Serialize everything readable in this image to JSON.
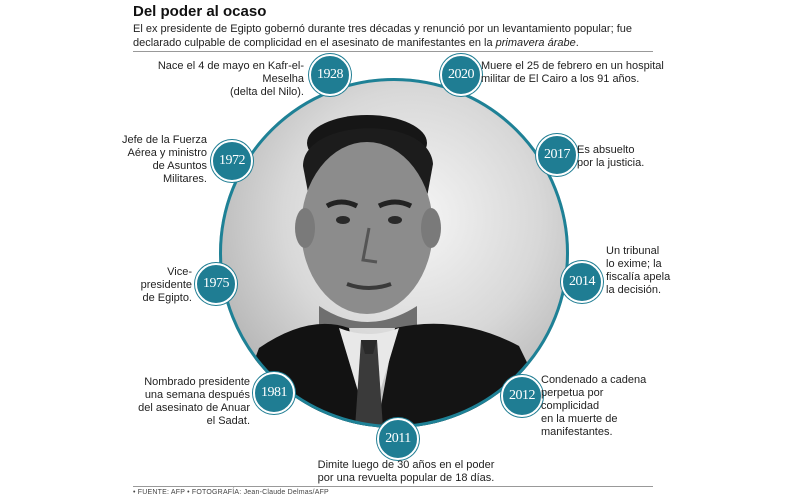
{
  "title": "Del poder al ocaso",
  "intro": {
    "line1": "El ex presidente de Egipto gobernó durante tres décadas y renunció por un levantamiento popular; fue",
    "line2_prefix": "declarado culpable de complicidad en el asesinato de manifestantes en la ",
    "line2_emphasis": "primavera árabe",
    "line2_suffix": "."
  },
  "accent_color": "#1f7d93",
  "photo_description_icon": "portrait-photo",
  "timeline": [
    {
      "year": "1928",
      "lines": [
        "Nace el 4 de mayo en Kafr-el-Meselha",
        "(delta del Nilo)."
      ]
    },
    {
      "year": "1972",
      "lines": [
        "Jefe de la Fuerza",
        "Aérea y ministro",
        "de Asuntos",
        "Militares."
      ]
    },
    {
      "year": "1975",
      "lines": [
        "Vice-",
        "presidente",
        "de Egipto."
      ]
    },
    {
      "year": "1981",
      "lines": [
        "Nombrado presidente",
        "una semana después",
        "del asesinato de Anuar",
        "el Sadat."
      ]
    },
    {
      "year": "2011",
      "lines": [
        "Dimite luego de 30 años en el poder",
        "por una revuelta popular de 18 días."
      ]
    },
    {
      "year": "2012",
      "lines": [
        "Condenado a cadena",
        "perpetua por",
        "complicidad",
        "en la muerte de",
        "manifestantes."
      ]
    },
    {
      "year": "2014",
      "lines": [
        "Un tribunal",
        "lo exime; la",
        "fiscalía apela",
        "la decisión."
      ]
    },
    {
      "year": "2017",
      "lines": [
        "Es absuelto",
        "por la justicia."
      ]
    },
    {
      "year": "2020",
      "lines": [
        "Muere el 25 de febrero en un hospital",
        "militar de El Cairo a los 91 años."
      ]
    }
  ],
  "source": "• FUENTE: AFP • FOTOGRAFÍA: Jean-Claude Delmas/AFP"
}
